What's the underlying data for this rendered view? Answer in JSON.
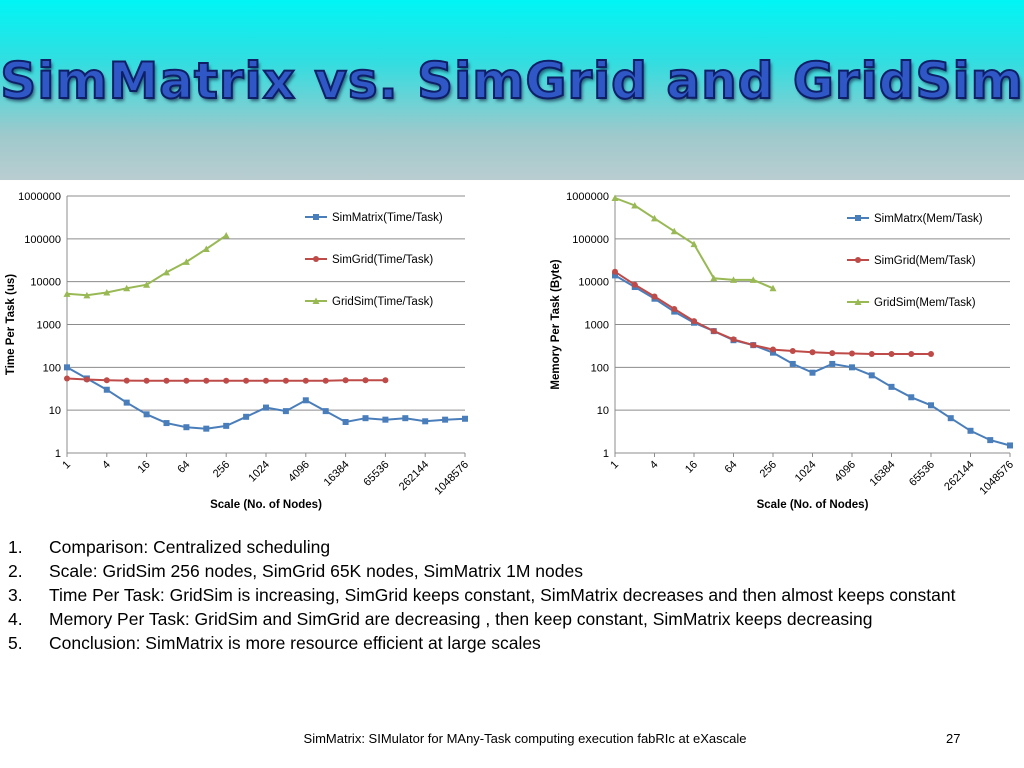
{
  "slide": {
    "title": "SimMatrix vs. SimGrid and GridSim",
    "bullets": [
      "Comparison: Centralized scheduling",
      "Scale: GridSim 256 nodes, SimGrid 65K nodes, SimMatrix 1M nodes",
      "Time Per Task: GridSim is increasing, SimGrid keeps constant, SimMatrix decreases and then almost keeps constant",
      "Memory Per Task: GridSim and SimGrid are decreasing , then keep constant, SimMatrix keeps decreasing",
      "Conclusion: SimMatrix is more resource efficient at large scales"
    ],
    "bullet_numbers": [
      "1.",
      "2.",
      "3.",
      "4.",
      "5."
    ],
    "footer": "SimMatrix: SIMulator for MAny-Task computing execution fabRIc at eXascale",
    "page_number": "27"
  },
  "chart_data": [
    {
      "type": "line",
      "xlabel": "Scale (No. of Nodes)",
      "ylabel": "Time Per Task (us)",
      "y_scale": "log",
      "ylim": [
        1,
        1000000
      ],
      "y_ticks": [
        "1",
        "10",
        "100",
        "1000",
        "10000",
        "100000",
        "1000000"
      ],
      "x": [
        1,
        2,
        4,
        8,
        16,
        32,
        64,
        128,
        256,
        512,
        1024,
        2048,
        4096,
        8192,
        16384,
        32768,
        65536,
        131072,
        262144,
        524288,
        1048576
      ],
      "x_tick_labels": [
        "1",
        "4",
        "16",
        "64",
        "256",
        "1024",
        "4096",
        "16384",
        "65536",
        "262144",
        "1048576"
      ],
      "grid": "horizontal",
      "legend": "right",
      "series": [
        {
          "name": "SimMatrix(Time/Task)",
          "color": "#4a7ebb",
          "marker": "square",
          "values": [
            100,
            55,
            30,
            15,
            8,
            5,
            4,
            3.7,
            4.3,
            7,
            11.5,
            9.5,
            17,
            9.5,
            5.3,
            6.5,
            6,
            6.5,
            5.5,
            6,
            6.3
          ]
        },
        {
          "name": "SimGrid(Time/Task)",
          "color": "#be4b48",
          "marker": "circle",
          "values": [
            55,
            52,
            50,
            49,
            48.5,
            48.5,
            48.5,
            48.5,
            48.5,
            48.5,
            48.5,
            48.5,
            48.5,
            48.5,
            50,
            50,
            50,
            null,
            null,
            null,
            null
          ]
        },
        {
          "name": "GridSim(Time/Task)",
          "color": "#98b954",
          "marker": "triangle",
          "values": [
            5200,
            4800,
            5600,
            7000,
            8500,
            16500,
            29000,
            58000,
            120000,
            null,
            null,
            null,
            null,
            null,
            null,
            null,
            null,
            null,
            null,
            null,
            null
          ]
        }
      ]
    },
    {
      "type": "line",
      "xlabel": "Scale (No. of Nodes)",
      "ylabel": "Memory Per Task (Byte)",
      "y_scale": "log",
      "ylim": [
        1,
        1000000
      ],
      "y_ticks": [
        "1",
        "10",
        "100",
        "1000",
        "10000",
        "100000",
        "1000000"
      ],
      "x": [
        1,
        2,
        4,
        8,
        16,
        32,
        64,
        128,
        256,
        512,
        1024,
        2048,
        4096,
        8192,
        16384,
        32768,
        65536,
        131072,
        262144,
        524288,
        1048576
      ],
      "x_tick_labels": [
        "1",
        "4",
        "16",
        "64",
        "256",
        "1024",
        "4096",
        "16384",
        "65536",
        "262144",
        "1048576"
      ],
      "grid": "horizontal",
      "legend": "right",
      "series": [
        {
          "name": "SimMatrx(Mem/Task)",
          "color": "#4a7ebb",
          "marker": "square",
          "values": [
            14000,
            7500,
            4000,
            2000,
            1100,
            700,
            430,
            330,
            220,
            120,
            75,
            120,
            100,
            65,
            35,
            20,
            13,
            6.5,
            3.3,
            2,
            1.5
          ]
        },
        {
          "name": "SimGrid(Mem/Task)",
          "color": "#be4b48",
          "marker": "circle",
          "values": [
            17000,
            8500,
            4500,
            2300,
            1200,
            700,
            450,
            330,
            260,
            240,
            225,
            215,
            210,
            205,
            205,
            205,
            205,
            null,
            null,
            null,
            null
          ]
        },
        {
          "name": "GridSim(Mem/Task)",
          "color": "#98b954",
          "marker": "triangle",
          "values": [
            900000,
            600000,
            300000,
            150000,
            75000,
            12000,
            11000,
            11000,
            7000,
            null,
            null,
            null,
            null,
            null,
            null,
            null,
            null,
            null,
            null,
            null,
            null
          ]
        }
      ]
    }
  ]
}
